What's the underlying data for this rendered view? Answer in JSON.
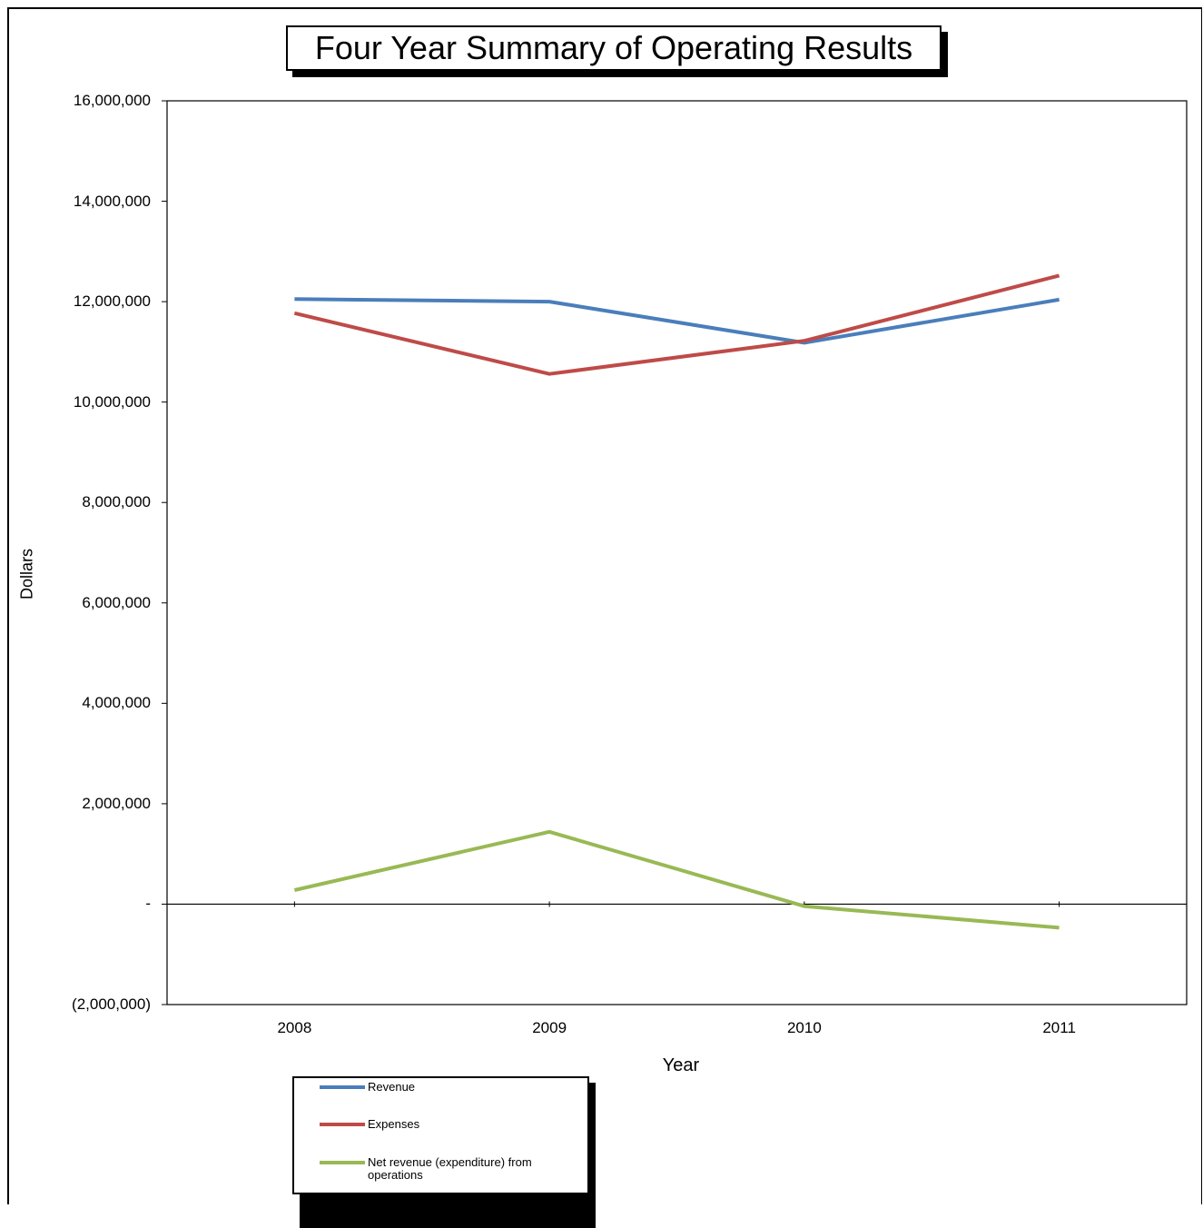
{
  "chart_data": {
    "type": "line",
    "title": "Four Year Summary of Operating Results",
    "xlabel": "Year",
    "ylabel": "Dollars",
    "categories": [
      "2008",
      "2009",
      "2010",
      "2011"
    ],
    "ylim": [
      -2000000,
      16000000
    ],
    "yticks": [
      {
        "value": 16000000,
        "label": "16,000,000"
      },
      {
        "value": 14000000,
        "label": "14,000,000"
      },
      {
        "value": 12000000,
        "label": "12,000,000"
      },
      {
        "value": 10000000,
        "label": "10,000,000"
      },
      {
        "value": 8000000,
        "label": "8,000,000"
      },
      {
        "value": 6000000,
        "label": "6,000,000"
      },
      {
        "value": 4000000,
        "label": "4,000,000"
      },
      {
        "value": 2000000,
        "label": "2,000,000"
      },
      {
        "value": 0,
        "label": "-"
      },
      {
        "value": -2000000,
        "label": "(2,000,000)"
      }
    ],
    "series": [
      {
        "name": "Revenue",
        "color": "#4a7ebb",
        "values": [
          12050000,
          12000000,
          11180000,
          12040000
        ]
      },
      {
        "name": "Expenses",
        "color": "#be4b48",
        "values": [
          11770000,
          10560000,
          11220000,
          12520000
        ]
      },
      {
        "name": "Net revenue (expenditure) from operations",
        "color": "#98b954",
        "values": [
          280000,
          1440000,
          -40000,
          -470000
        ]
      }
    ],
    "grid": false,
    "legend_position": "bottom-left"
  }
}
